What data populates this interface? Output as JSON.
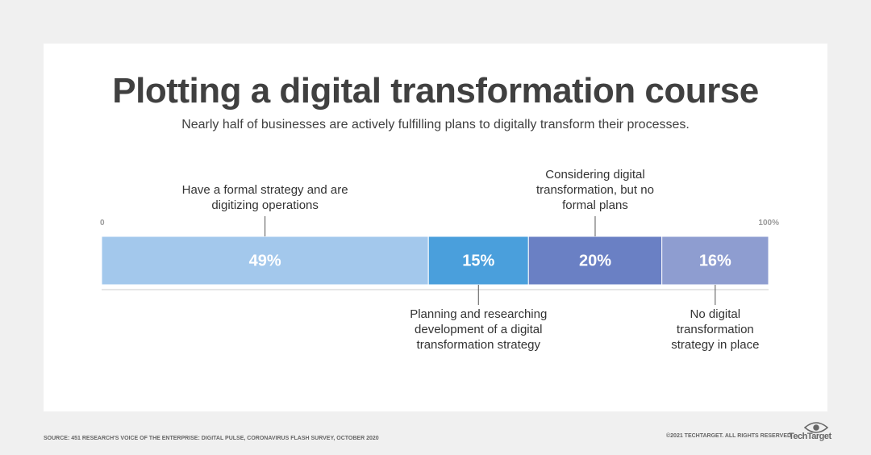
{
  "chart_data": {
    "type": "bar",
    "stacked": true,
    "orientation": "horizontal",
    "title": "Plotting a digital transformation course",
    "subtitle": "Nearly half of businesses are actively fulfilling plans to digitally transform their processes.",
    "series": [
      {
        "name": "Have a formal strategy and are digitizing operations",
        "color": "#a3c8ec",
        "values": [
          49
        ],
        "value_labels": [
          "49%"
        ]
      },
      {
        "name": "Planning and researching development of a digital transformation strategy",
        "color": "#4a9fdc",
        "values": [
          15
        ],
        "value_labels": [
          "15%"
        ]
      },
      {
        "name": "Considering digital transformation, but no formal plans",
        "color": "#6a80c4",
        "values": [
          20
        ],
        "value_labels": [
          "20%"
        ]
      },
      {
        "name": "No digital transformation strategy in place",
        "color": "#8e9dd0",
        "values": [
          16
        ],
        "value_labels": [
          "16%"
        ]
      }
    ],
    "xlim": [
      0,
      100
    ],
    "xticks": [
      0,
      {
        "value": 100,
        "label": "100%"
      }
    ],
    "source": "SOURCE: 451 RESEARCH'S VOICE OF THE ENTERPRISE: DIGITAL PULSE, CORONAVIRUS FLASH SURVEY, OCTOBER 2020",
    "copyright": "©2021 TECHTARGET. ALL RIGHTS RESERVED",
    "logo": "TechTarget"
  }
}
